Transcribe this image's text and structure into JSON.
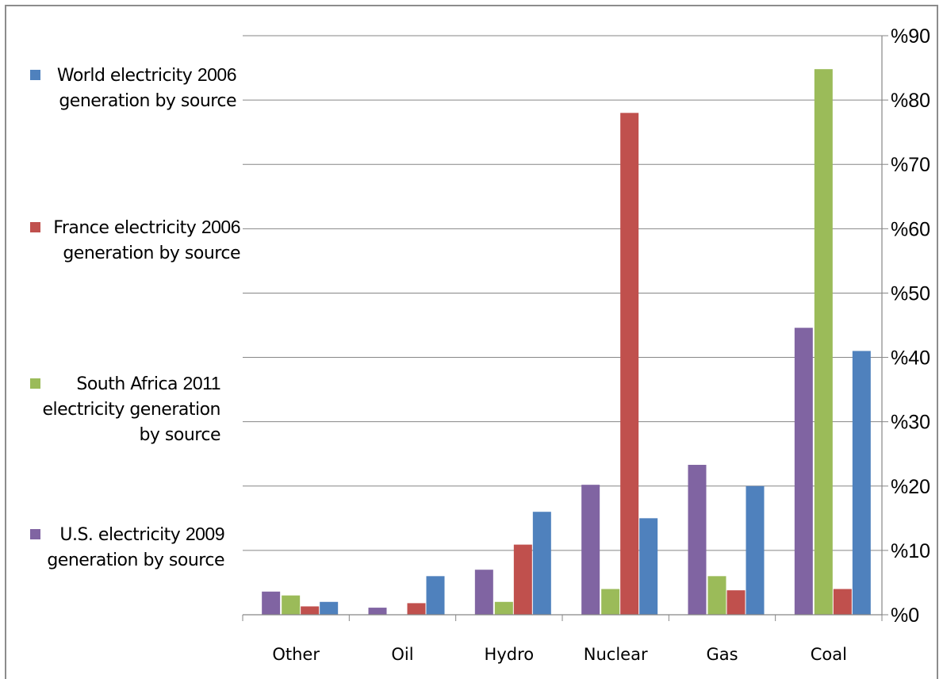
{
  "chart_data": {
    "type": "bar",
    "title": "",
    "xlabel": "",
    "ylabel": "",
    "categories": [
      "Other",
      "Oil",
      "Hydro",
      "Nuclear",
      "Gas",
      "Coal"
    ],
    "ylim": [
      0,
      90
    ],
    "y_ticks": [
      "%0",
      "%10",
      "%20",
      "%30",
      "%40",
      "%50",
      "%60",
      "%70",
      "%80",
      "%90"
    ],
    "y_axis_side": "right",
    "grid": true,
    "legend_position": "left",
    "series": [
      {
        "name": "U.S. electricity 2009 generation by source",
        "color": "#8064a2",
        "values": [
          3.6,
          1.1,
          7.0,
          20.2,
          23.3,
          44.6
        ]
      },
      {
        "name": "South Africa 2011 electricity generation by source",
        "color": "#9bbb59",
        "values": [
          3.0,
          0.0,
          2.0,
          4.0,
          6.0,
          84.8
        ]
      },
      {
        "name": "France electricity 2006 generation by source",
        "color": "#c0504d",
        "values": [
          1.3,
          1.8,
          10.9,
          78.0,
          3.8,
          4.0
        ]
      },
      {
        "name": "World electricity 2006 generation by source",
        "color": "#4f81bd",
        "values": [
          2.0,
          6.0,
          16.0,
          15.0,
          20.0,
          41.0
        ]
      }
    ]
  },
  "legend": [
    {
      "color": "#4f81bd",
      "lines": [
        [
          "World electricity ",
          "2006"
        ],
        [
          "generation by source"
        ]
      ]
    },
    {
      "color": "#c0504d",
      "lines": [
        [
          "France electricity ",
          "2006"
        ],
        [
          "generation by source"
        ]
      ]
    },
    {
      "color": "#9bbb59",
      "lines": [
        [
          "South Africa ",
          "2011"
        ],
        [
          "electricity generation"
        ],
        [
          "by source"
        ]
      ]
    },
    {
      "color": "#8064a2",
      "lines": [
        [
          "U.S. electricity ",
          "2009"
        ],
        [
          "generation by source"
        ]
      ]
    }
  ]
}
